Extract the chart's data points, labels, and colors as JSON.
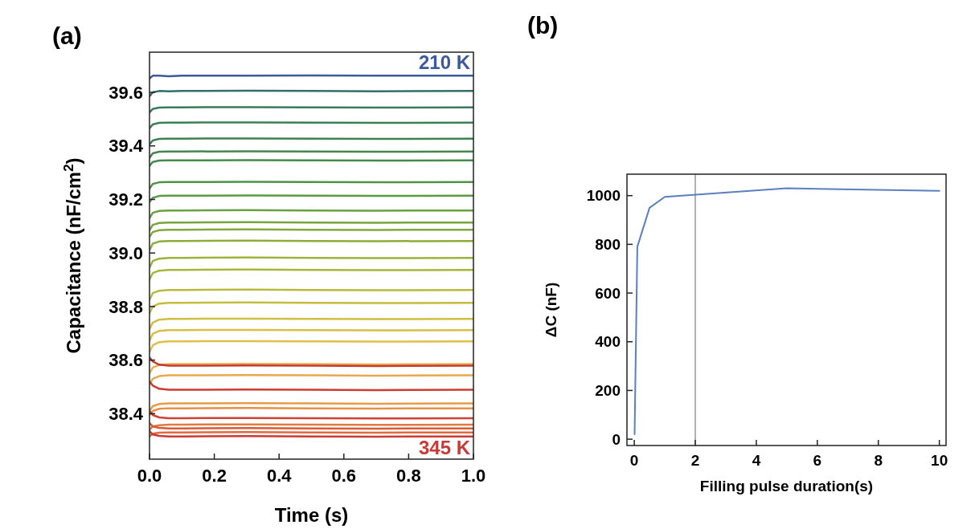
{
  "chart_data": [
    {
      "type": "line",
      "title": "(a)",
      "xlabel": "Time (s)",
      "ylabel": "Capacitance (nF/cm$^{2}$)",
      "x": [
        0,
        0.01,
        0.03,
        0.06,
        0.1,
        0.3,
        0.5,
        0.7,
        1.0
      ],
      "xlim": [
        0,
        1
      ],
      "ylim": [
        38.23,
        39.75
      ],
      "xticks": [
        {
          "value": 0,
          "label": "0.0"
        },
        0.2,
        0.4,
        0.6,
        0.8,
        {
          "value": 1,
          "label": "1.0"
        }
      ],
      "yticks": [
        38.4,
        38.6,
        38.8,
        {
          "value": 39,
          "label": "39.0"
        },
        39.2,
        39.4,
        39.6
      ],
      "series": [
        {
          "name": "210 K",
          "color": "#3c5a9a",
          "values": [
            39.652,
            39.662,
            39.662,
            39.66,
            39.662,
            39.662,
            39.663,
            39.662,
            39.662
          ]
        },
        {
          "color": "#336e68",
          "values": [
            39.585,
            39.6,
            39.605,
            39.604,
            39.605,
            39.606,
            39.605,
            39.604,
            39.605
          ]
        },
        {
          "color": "#3a7a5c",
          "values": [
            39.525,
            39.538,
            39.543,
            39.544,
            39.544,
            39.545,
            39.544,
            39.543,
            39.544
          ]
        },
        {
          "color": "#3d7f55",
          "values": [
            39.465,
            39.48,
            39.486,
            39.487,
            39.487,
            39.488,
            39.487,
            39.486,
            39.487
          ]
        },
        {
          "color": "#3f8250",
          "values": [
            39.405,
            39.42,
            39.426,
            39.427,
            39.427,
            39.428,
            39.427,
            39.426,
            39.427
          ]
        },
        {
          "color": "#43874c",
          "values": [
            39.355,
            39.372,
            39.378,
            39.379,
            39.379,
            39.38,
            39.379,
            39.378,
            39.379
          ]
        },
        {
          "color": "#468a4a",
          "values": [
            39.325,
            39.34,
            39.345,
            39.346,
            39.346,
            39.347,
            39.346,
            39.345,
            39.346
          ]
        },
        {
          "color": "#4e9245",
          "values": [
            39.24,
            39.258,
            39.264,
            39.265,
            39.265,
            39.266,
            39.265,
            39.264,
            39.265
          ]
        },
        {
          "color": "#5a9a42",
          "values": [
            39.19,
            39.206,
            39.213,
            39.214,
            39.214,
            39.215,
            39.214,
            39.213,
            39.214
          ]
        },
        {
          "color": "#6aa040",
          "values": [
            39.13,
            39.15,
            39.157,
            39.159,
            39.159,
            39.16,
            39.159,
            39.158,
            39.159
          ]
        },
        {
          "color": "#76a43e",
          "values": [
            39.085,
            39.105,
            39.112,
            39.114,
            39.114,
            39.115,
            39.114,
            39.113,
            39.114
          ]
        },
        {
          "color": "#80a83c",
          "values": [
            39.06,
            39.078,
            39.085,
            39.087,
            39.087,
            39.088,
            39.087,
            39.086,
            39.087
          ]
        },
        {
          "color": "#8cac3a",
          "values": [
            39.01,
            39.035,
            39.043,
            39.045,
            39.045,
            39.046,
            39.045,
            39.044,
            39.045
          ]
        },
        {
          "color": "#9cb238",
          "values": [
            38.945,
            38.97,
            38.979,
            38.982,
            38.982,
            38.983,
            38.982,
            38.981,
            38.982
          ]
        },
        {
          "color": "#a8b638",
          "values": [
            38.9,
            38.925,
            38.934,
            38.937,
            38.937,
            38.938,
            38.937,
            38.936,
            38.937
          ]
        },
        {
          "color": "#b8ba3a",
          "values": [
            38.825,
            38.85,
            38.859,
            38.862,
            38.862,
            38.863,
            38.862,
            38.861,
            38.862
          ]
        },
        {
          "color": "#c4bc3c",
          "values": [
            38.775,
            38.8,
            38.811,
            38.814,
            38.814,
            38.815,
            38.814,
            38.813,
            38.814
          ]
        },
        {
          "color": "#d0be40",
          "values": [
            38.715,
            38.74,
            38.751,
            38.754,
            38.754,
            38.755,
            38.754,
            38.753,
            38.754
          ]
        },
        {
          "color": "#d8be44",
          "values": [
            38.672,
            38.698,
            38.709,
            38.712,
            38.712,
            38.713,
            38.712,
            38.711,
            38.712
          ]
        },
        {
          "color": "#e0be48",
          "values": [
            38.63,
            38.655,
            38.667,
            38.67,
            38.67,
            38.671,
            38.67,
            38.669,
            38.67
          ]
        },
        {
          "color": "#e8b050",
          "values": [
            38.55,
            38.572,
            38.582,
            38.585,
            38.585,
            38.586,
            38.585,
            38.584,
            38.585
          ]
        },
        {
          "color": "#c83a30",
          "values": [
            38.61,
            38.595,
            38.583,
            38.579,
            38.579,
            38.58,
            38.579,
            38.578,
            38.579
          ]
        },
        {
          "color": "#e8a850",
          "values": [
            38.51,
            38.53,
            38.54,
            38.543,
            38.543,
            38.544,
            38.543,
            38.542,
            38.543
          ]
        },
        {
          "color": "#cc3a30",
          "values": [
            38.52,
            38.505,
            38.493,
            38.489,
            38.489,
            38.49,
            38.489,
            38.488,
            38.489
          ]
        },
        {
          "color": "#e89a48",
          "values": [
            38.41,
            38.428,
            38.436,
            38.438,
            38.438,
            38.439,
            38.438,
            38.437,
            38.438
          ]
        },
        {
          "color": "#e89048",
          "values": [
            38.395,
            38.41,
            38.418,
            38.42,
            38.42,
            38.421,
            38.42,
            38.419,
            38.42
          ]
        },
        {
          "color": "#d04034",
          "values": [
            38.41,
            38.395,
            38.386,
            38.383,
            38.383,
            38.384,
            38.383,
            38.382,
            38.383
          ]
        },
        {
          "color": "#e07a40",
          "values": [
            38.34,
            38.352,
            38.357,
            38.359,
            38.359,
            38.36,
            38.359,
            38.358,
            38.359
          ]
        },
        {
          "color": "#d85a38",
          "values": [
            38.365,
            38.352,
            38.347,
            38.345,
            38.345,
            38.346,
            38.345,
            38.344,
            38.345
          ]
        },
        {
          "color": "#e06a3c",
          "values": [
            38.315,
            38.325,
            38.329,
            38.33,
            38.33,
            38.331,
            38.33,
            38.329,
            38.33
          ]
        },
        {
          "name": "345 K",
          "color": "#c83a38",
          "values": [
            38.335,
            38.322,
            38.317,
            38.315,
            38.315,
            38.316,
            38.315,
            38.314,
            38.315
          ]
        }
      ]
    },
    {
      "type": "line",
      "title": "(b)",
      "xlabel": "Filling pulse duration(s)",
      "ylabel": "ΔC (nF)",
      "x": [
        0.01,
        0.1,
        0.5,
        1,
        5,
        10
      ],
      "xlim": [
        -0.24,
        10.22
      ],
      "ylim": [
        -26,
        1088
      ],
      "xticks": [
        0,
        2,
        4,
        6,
        8,
        10
      ],
      "yticks": [
        0,
        200,
        400,
        600,
        800,
        1000
      ],
      "series": [
        {
          "color": "#5b7fbf",
          "values": [
            20,
            790,
            950,
            995,
            1030,
            1020
          ]
        }
      ],
      "ref_lines": [
        {
          "axis": "x",
          "value": 2,
          "color": "#b0b0b0"
        }
      ]
    }
  ]
}
